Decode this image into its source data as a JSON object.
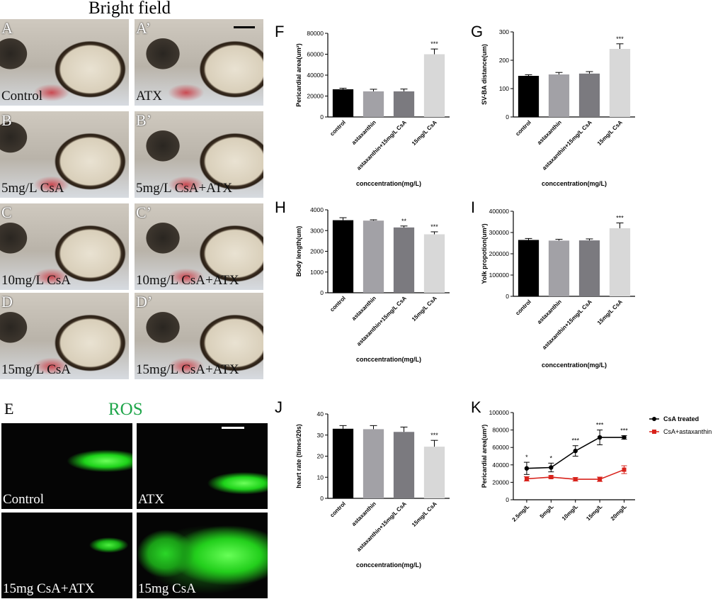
{
  "headers": {
    "bright_field": "Bright field",
    "ros": "ROS"
  },
  "bright_panels": [
    {
      "label": "A",
      "caption": "Control"
    },
    {
      "label": "A’",
      "caption": "ATX"
    },
    {
      "label": "B",
      "caption": "5mg/L CsA"
    },
    {
      "label": "B’",
      "caption": "5mg/L CsA+ATX"
    },
    {
      "label": "C",
      "caption": "10mg/L CsA"
    },
    {
      "label": "C’",
      "caption": "10mg/L CsA+ATX"
    },
    {
      "label": "D",
      "caption": "15mg/L CsA"
    },
    {
      "label": "D’",
      "caption": "15mg/L CsA+ATX"
    }
  ],
  "ros_panels": {
    "label": "E",
    "captions": [
      "Control",
      "ATX",
      "15mg CsA+ATX",
      "15mg CsA"
    ]
  },
  "colors": {
    "control": "#000000",
    "astaxanthin": "#a2a1a6",
    "combo": "#7b7a7f",
    "csa15": "#d8d8d8",
    "csa_treated": "#000000",
    "csa_astaxanthin": "#d8221b",
    "fluor": "#22e01c"
  },
  "chart_data": [
    {
      "id": "F",
      "type": "bar",
      "categories": [
        "control",
        "astaxanthin",
        "astaxanthin+15mg/L CsA",
        "15mg/L CsA"
      ],
      "values": [
        26500,
        24500,
        24500,
        60000
      ],
      "errors": [
        1000,
        2000,
        2200,
        5000
      ],
      "sig": [
        "",
        "",
        "",
        "***"
      ],
      "ylabel": "Pericardial area(um²)",
      "xlabel": "conccentration(mg/L)",
      "ylim": [
        0,
        80000
      ],
      "ticks": [
        "0",
        "20000",
        "40000",
        "60000",
        "80000"
      ]
    },
    {
      "id": "G",
      "type": "bar",
      "categories": [
        "control",
        "astaxanthin",
        "astaxanthin+15mg/L CsA",
        "15mg/L CsA"
      ],
      "values": [
        145,
        150,
        153,
        240
      ],
      "errors": [
        4,
        7,
        7,
        18
      ],
      "sig": [
        "",
        "",
        "",
        "***"
      ],
      "ylabel": "SV-BA distance(um)",
      "xlabel": "conccentration(mg/L)",
      "ylim": [
        0,
        300
      ],
      "ticks": [
        "0",
        "100",
        "200",
        "300"
      ]
    },
    {
      "id": "H",
      "type": "bar",
      "categories": [
        "control",
        "astaxanthin",
        "astaxanthin+15mg/L CsA",
        "15mg/L CsA"
      ],
      "values": [
        3500,
        3480,
        3150,
        2820
      ],
      "errors": [
        120,
        40,
        70,
        120
      ],
      "sig": [
        "",
        "",
        "**",
        "***"
      ],
      "ylabel": "Body length(um)",
      "xlabel": "conccentration(mg/L)",
      "ylim": [
        0,
        4000
      ],
      "ticks": [
        "0",
        "1000",
        "2000",
        "3000",
        "4000"
      ]
    },
    {
      "id": "I",
      "type": "bar",
      "categories": [
        "control",
        "astaxanthin",
        "astaxanthin+15mg/L CsA",
        "15mg/L CsA"
      ],
      "values": [
        265000,
        262000,
        263000,
        320000
      ],
      "errors": [
        7000,
        6000,
        7000,
        25000
      ],
      "sig": [
        "",
        "",
        "",
        "***"
      ],
      "ylabel": "Yolk propotion(um²)",
      "xlabel": "conccentration(mg/L)",
      "ylim": [
        0,
        400000
      ],
      "ticks": [
        "0",
        "100000",
        "200000",
        "300000",
        "400000"
      ]
    },
    {
      "id": "J",
      "type": "bar",
      "categories": [
        "control",
        "astaxanthin",
        "astaxanthin+15mg/L CsA",
        "15mg/L CsA"
      ],
      "values": [
        33,
        32.8,
        31.5,
        24.5
      ],
      "errors": [
        1.5,
        1.7,
        2.3,
        3
      ],
      "sig": [
        "",
        "",
        "",
        "***"
      ],
      "ylabel": "heart rate (times/20s)",
      "xlabel": "conccentration(mg/L)",
      "ylim": [
        0,
        40
      ],
      "ticks": [
        "0",
        "10",
        "20",
        "30",
        "40"
      ]
    },
    {
      "id": "K",
      "type": "line",
      "categories": [
        "2.5mg/L",
        "5mg/L",
        "10mg/L",
        "15mg/L",
        "20mg/L"
      ],
      "series": [
        {
          "name": "CsA treated",
          "values": [
            36000,
            37000,
            56000,
            71500,
            71500
          ],
          "errors": [
            7000,
            5000,
            6000,
            8500,
            2000
          ]
        },
        {
          "name": "CsA+astaxanthin",
          "values": [
            24000,
            26000,
            23500,
            23500,
            34500
          ],
          "errors": [
            2500,
            1500,
            2000,
            2500,
            4500
          ]
        }
      ],
      "sig": [
        "*",
        "*",
        "***",
        "***",
        "***"
      ],
      "ylabel": "Pericardial area(um²)",
      "ylim": [
        0,
        100000
      ],
      "ticks": [
        "0",
        "20000",
        "40000",
        "60000",
        "80000",
        "100000"
      ],
      "legend": "right"
    }
  ]
}
